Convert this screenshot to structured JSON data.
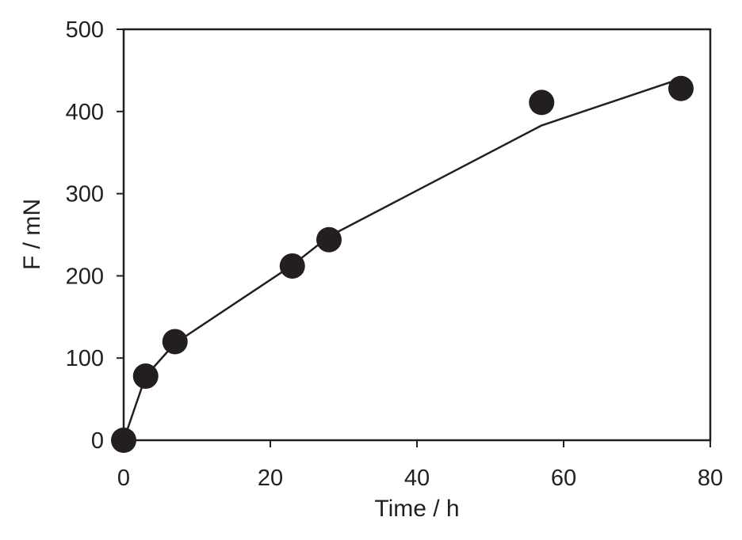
{
  "chart_data": {
    "type": "scatter",
    "xlabel": "Time / h",
    "ylabel": "F / mN",
    "xlim": [
      0,
      80
    ],
    "ylim": [
      0,
      500
    ],
    "xticks": [
      0,
      20,
      40,
      60,
      80
    ],
    "yticks": [
      0,
      100,
      200,
      300,
      400,
      500
    ],
    "grid": false,
    "legend": "none",
    "series": [
      {
        "kind": "points",
        "x": [
          0,
          3,
          7,
          23,
          28,
          57,
          76
        ],
        "y": [
          0,
          78,
          120,
          212,
          244,
          411,
          428
        ]
      },
      {
        "kind": "line",
        "x": [
          0,
          3,
          7,
          23,
          28,
          57,
          76
        ],
        "y": [
          0,
          78,
          118,
          213,
          248,
          383,
          440
        ]
      }
    ],
    "colors": {
      "marker": "#231f20",
      "line": "#231f20",
      "axis": "#231f20"
    }
  }
}
